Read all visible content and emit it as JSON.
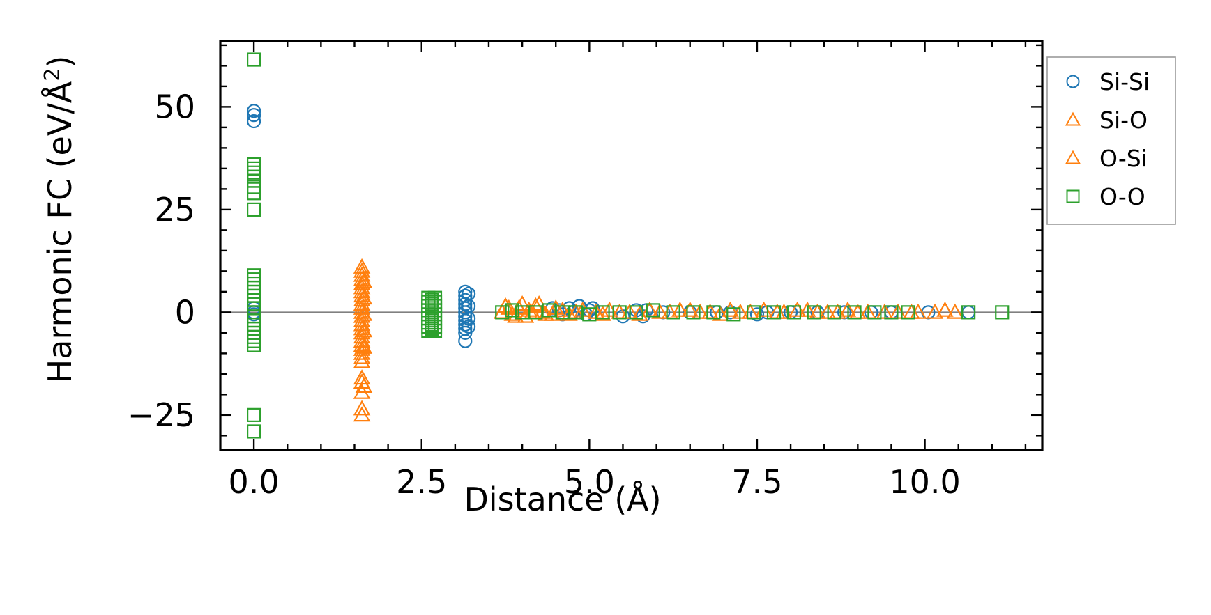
{
  "chart_data": {
    "type": "scatter",
    "title": "",
    "xlabel": "Distance (Å)",
    "ylabel_main": "Harmonic FC (eV/Å",
    "ylabel_sup": "2",
    "ylabel_close": ")",
    "xlim": [
      -0.5,
      11.75
    ],
    "ylim": [
      -33.5,
      66
    ],
    "xticks": [
      0.0,
      2.5,
      5.0,
      7.5,
      10.0
    ],
    "xtick_labels": [
      "0.0",
      "2.5",
      "5.0",
      "7.5",
      "10.0"
    ],
    "yticks": [
      -25,
      0,
      25,
      50
    ],
    "ytick_labels": [
      "−25",
      "0",
      "25",
      "50"
    ],
    "zero_line": 0,
    "legend_position": "outside-right-top",
    "series": [
      {
        "name": "Si-Si",
        "color": "#1f77b4",
        "marker": "circle",
        "points": [
          [
            0.0,
            49.0
          ],
          [
            0.0,
            48.0
          ],
          [
            0.0,
            46.5
          ],
          [
            0.0,
            1.0
          ],
          [
            0.0,
            0.0
          ],
          [
            0.0,
            -0.5
          ],
          [
            3.15,
            5.0
          ],
          [
            3.15,
            4.0
          ],
          [
            3.15,
            3.0
          ],
          [
            3.15,
            2.0
          ],
          [
            3.15,
            1.0
          ],
          [
            3.15,
            0.0
          ],
          [
            3.15,
            -1.0
          ],
          [
            3.15,
            -2.0
          ],
          [
            3.15,
            -3.0
          ],
          [
            3.15,
            -4.0
          ],
          [
            3.15,
            -5.0
          ],
          [
            3.15,
            -7.0
          ],
          [
            3.2,
            4.5
          ],
          [
            3.2,
            1.5
          ],
          [
            3.2,
            -1.5
          ],
          [
            3.2,
            -3.5
          ],
          [
            4.45,
            1.0
          ],
          [
            4.55,
            0.5
          ],
          [
            4.6,
            -0.5
          ],
          [
            4.7,
            1.0
          ],
          [
            4.75,
            0.0
          ],
          [
            4.85,
            1.5
          ],
          [
            4.95,
            -0.5
          ],
          [
            5.0,
            0.5
          ],
          [
            5.05,
            1.0
          ],
          [
            5.5,
            -1.0
          ],
          [
            5.7,
            0.5
          ],
          [
            5.8,
            -1.0
          ],
          [
            5.85,
            0.5
          ],
          [
            6.1,
            0.0
          ],
          [
            6.5,
            0.0
          ],
          [
            6.9,
            0.0
          ],
          [
            7.1,
            0.0
          ],
          [
            7.5,
            -0.5
          ],
          [
            7.65,
            0.0
          ],
          [
            8.0,
            0.0
          ],
          [
            8.4,
            0.0
          ],
          [
            8.8,
            0.0
          ],
          [
            9.2,
            0.0
          ],
          [
            9.5,
            0.0
          ],
          [
            10.05,
            0.0
          ],
          [
            10.65,
            0.0
          ]
        ]
      },
      {
        "name": "Si-O",
        "color": "#ff7f0e",
        "marker": "triangle",
        "points": [
          [
            1.61,
            11.0
          ],
          [
            1.61,
            10.0
          ],
          [
            1.61,
            9.0
          ],
          [
            1.61,
            8.0
          ],
          [
            1.61,
            7.0
          ],
          [
            1.61,
            6.0
          ],
          [
            1.61,
            5.0
          ],
          [
            1.61,
            4.0
          ],
          [
            1.61,
            3.0
          ],
          [
            1.61,
            2.0
          ],
          [
            1.61,
            1.0
          ],
          [
            1.61,
            0.0
          ],
          [
            1.61,
            -1.0
          ],
          [
            1.61,
            -2.0
          ],
          [
            1.61,
            -3.0
          ],
          [
            1.61,
            -4.0
          ],
          [
            1.61,
            -5.0
          ],
          [
            1.61,
            -6.0
          ],
          [
            1.61,
            -7.0
          ],
          [
            1.61,
            -8.0
          ],
          [
            1.61,
            -9.0
          ],
          [
            1.61,
            -10.0
          ],
          [
            1.61,
            -11.0
          ],
          [
            1.61,
            -12.0
          ],
          [
            1.61,
            -16.0
          ],
          [
            1.61,
            -17.0
          ],
          [
            1.61,
            -19.5
          ],
          [
            1.61,
            -23.5
          ],
          [
            1.61,
            -25.0
          ],
          [
            1.64,
            7.5
          ],
          [
            1.64,
            3.5
          ],
          [
            1.64,
            -0.5
          ],
          [
            1.64,
            -4.5
          ],
          [
            1.64,
            -8.5
          ],
          [
            1.64,
            -18.0
          ],
          [
            3.7,
            0.0
          ],
          [
            3.8,
            1.0
          ],
          [
            3.9,
            -1.0
          ],
          [
            4.0,
            2.0
          ],
          [
            4.1,
            0.5
          ],
          [
            4.2,
            1.5
          ],
          [
            4.3,
            0.0
          ],
          [
            4.45,
            -0.5
          ],
          [
            4.6,
            0.5
          ],
          [
            4.8,
            0.0
          ],
          [
            5.1,
            0.0
          ],
          [
            5.3,
            0.5
          ],
          [
            5.6,
            0.0
          ],
          [
            5.9,
            0.5
          ],
          [
            6.2,
            0.0
          ],
          [
            6.5,
            0.5
          ],
          [
            6.8,
            0.0
          ],
          [
            7.1,
            0.5
          ],
          [
            7.4,
            0.0
          ],
          [
            7.8,
            0.0
          ],
          [
            8.1,
            0.5
          ],
          [
            8.4,
            0.0
          ],
          [
            8.7,
            0.0
          ],
          [
            9.0,
            0.0
          ],
          [
            9.4,
            0.0
          ],
          [
            9.8,
            0.0
          ],
          [
            10.15,
            0.0
          ],
          [
            10.3,
            0.5
          ],
          [
            10.45,
            0.0
          ]
        ]
      },
      {
        "name": "O-Si",
        "color": "#ff7f0e",
        "marker": "triangle",
        "points": [
          [
            3.75,
            1.5
          ],
          [
            3.85,
            -0.5
          ],
          [
            3.95,
            1.0
          ],
          [
            4.05,
            -1.0
          ],
          [
            4.15,
            0.0
          ],
          [
            4.25,
            2.0
          ],
          [
            4.35,
            -0.5
          ],
          [
            4.5,
            1.0
          ],
          [
            4.7,
            -0.5
          ],
          [
            4.9,
            0.5
          ],
          [
            5.2,
            -0.5
          ],
          [
            5.45,
            0.0
          ],
          [
            5.75,
            -0.5
          ],
          [
            6.05,
            0.0
          ],
          [
            6.35,
            0.5
          ],
          [
            6.65,
            0.0
          ],
          [
            6.95,
            -0.5
          ],
          [
            7.25,
            0.0
          ],
          [
            7.6,
            0.5
          ],
          [
            7.9,
            0.0
          ],
          [
            8.25,
            0.5
          ],
          [
            8.55,
            0.0
          ],
          [
            8.85,
            0.5
          ],
          [
            9.15,
            0.0
          ],
          [
            9.6,
            0.0
          ],
          [
            9.9,
            0.0
          ]
        ]
      },
      {
        "name": "O-O",
        "color": "#2ca02c",
        "marker": "square",
        "points": [
          [
            0.0,
            61.5
          ],
          [
            0.0,
            36.0
          ],
          [
            0.0,
            35.0
          ],
          [
            0.0,
            34.0
          ],
          [
            0.0,
            33.0
          ],
          [
            0.0,
            32.0
          ],
          [
            0.0,
            30.5
          ],
          [
            0.0,
            29.0
          ],
          [
            0.0,
            25.0
          ],
          [
            0.0,
            9.0
          ],
          [
            0.0,
            8.0
          ],
          [
            0.0,
            7.0
          ],
          [
            0.0,
            6.0
          ],
          [
            0.0,
            5.0
          ],
          [
            0.0,
            4.0
          ],
          [
            0.0,
            3.0
          ],
          [
            0.0,
            2.0
          ],
          [
            0.0,
            1.0
          ],
          [
            0.0,
            0.0
          ],
          [
            0.0,
            -1.0
          ],
          [
            0.0,
            -2.0
          ],
          [
            0.0,
            -3.0
          ],
          [
            0.0,
            -4.0
          ],
          [
            0.0,
            -5.0
          ],
          [
            0.0,
            -6.0
          ],
          [
            0.0,
            -7.0
          ],
          [
            0.0,
            -8.0
          ],
          [
            0.0,
            -25.0
          ],
          [
            0.0,
            -29.0
          ],
          [
            2.6,
            3.5
          ],
          [
            2.6,
            2.5
          ],
          [
            2.6,
            1.5
          ],
          [
            2.6,
            0.5
          ],
          [
            2.6,
            -0.5
          ],
          [
            2.6,
            -1.5
          ],
          [
            2.6,
            -2.5
          ],
          [
            2.6,
            -3.5
          ],
          [
            2.6,
            -4.5
          ],
          [
            2.65,
            3.0
          ],
          [
            2.65,
            2.0
          ],
          [
            2.65,
            1.0
          ],
          [
            2.65,
            0.0
          ],
          [
            2.65,
            -1.0
          ],
          [
            2.65,
            -2.0
          ],
          [
            2.65,
            -3.0
          ],
          [
            2.65,
            -4.0
          ],
          [
            2.7,
            3.5
          ],
          [
            2.7,
            2.5
          ],
          [
            2.7,
            1.5
          ],
          [
            2.7,
            0.5
          ],
          [
            2.7,
            -0.5
          ],
          [
            2.7,
            -1.5
          ],
          [
            2.7,
            -2.5
          ],
          [
            2.7,
            -3.5
          ],
          [
            2.7,
            -4.5
          ],
          [
            3.7,
            0.0
          ],
          [
            3.85,
            0.5
          ],
          [
            4.0,
            0.0
          ],
          [
            4.2,
            0.0
          ],
          [
            4.4,
            0.5
          ],
          [
            4.6,
            0.0
          ],
          [
            4.8,
            0.0
          ],
          [
            5.0,
            -0.5
          ],
          [
            5.2,
            0.0
          ],
          [
            5.45,
            0.0
          ],
          [
            5.7,
            0.0
          ],
          [
            5.95,
            0.5
          ],
          [
            6.25,
            0.0
          ],
          [
            6.55,
            0.0
          ],
          [
            6.85,
            0.0
          ],
          [
            7.15,
            -0.5
          ],
          [
            7.45,
            0.0
          ],
          [
            7.75,
            0.0
          ],
          [
            8.05,
            0.0
          ],
          [
            8.35,
            0.0
          ],
          [
            8.65,
            0.0
          ],
          [
            8.95,
            0.0
          ],
          [
            9.25,
            0.0
          ],
          [
            9.5,
            0.0
          ],
          [
            9.75,
            0.0
          ],
          [
            10.65,
            0.0
          ],
          [
            11.15,
            0.0
          ]
        ]
      }
    ]
  }
}
